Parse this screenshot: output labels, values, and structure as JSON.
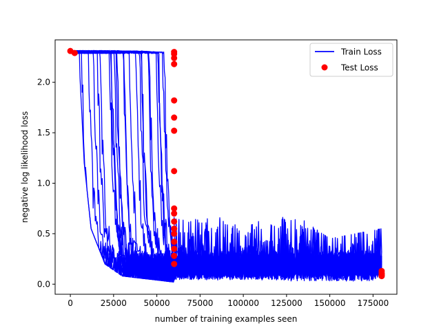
{
  "chart_data": {
    "type": "line",
    "xlabel": "number of training examples seen",
    "ylabel": "negative log likelihood loss",
    "xlim": [
      -8800,
      188800
    ],
    "ylim": [
      -0.1,
      2.42
    ],
    "xticks": [
      0,
      25000,
      50000,
      75000,
      100000,
      125000,
      150000,
      175000
    ],
    "xtick_labels": [
      "0",
      "25000",
      "50000",
      "75000",
      "100000",
      "125000",
      "150000",
      "175000"
    ],
    "yticks": [
      0.0,
      0.5,
      1.0,
      1.5,
      2.0
    ],
    "ytick_labels": [
      "0.0",
      "0.5",
      "1.0",
      "1.5",
      "2.0"
    ],
    "grid": false,
    "legend": {
      "placement": "top-right",
      "entries": [
        {
          "label": "Train Loss",
          "kind": "line",
          "color": "#0000ff"
        },
        {
          "label": "Test Loss",
          "kind": "marker",
          "color": "#ff0000"
        }
      ]
    },
    "series": [
      {
        "kind": "line",
        "color": "#0000ff",
        "x": [
          0,
          5000,
          8000,
          12000,
          20000,
          30000,
          40000,
          50000,
          60000,
          75000,
          100000,
          125000,
          150000,
          180000
        ],
        "y_min": [
          2.28,
          2.26,
          1.2,
          0.55,
          0.2,
          0.08,
          0.06,
          0.04,
          0.02,
          0.02,
          0.02,
          0.02,
          0.02,
          0.02
        ],
        "y_max": [
          2.32,
          2.32,
          2.32,
          2.32,
          2.32,
          2.31,
          2.31,
          2.3,
          2.3,
          0.75,
          0.55,
          0.75,
          0.45,
          0.55
        ]
      },
      {
        "kind": "scatter",
        "color": "#ff0000",
        "points": [
          [
            0,
            2.31
          ],
          [
            2500,
            2.29
          ],
          [
            60000,
            2.3
          ],
          [
            60000,
            2.28
          ],
          [
            60000,
            2.24
          ],
          [
            60000,
            2.18
          ],
          [
            60000,
            1.82
          ],
          [
            60000,
            1.65
          ],
          [
            60000,
            1.52
          ],
          [
            60000,
            1.12
          ],
          [
            60000,
            0.75
          ],
          [
            60000,
            0.7
          ],
          [
            60000,
            0.62
          ],
          [
            60000,
            0.55
          ],
          [
            60000,
            0.5
          ],
          [
            60000,
            0.42
          ],
          [
            60000,
            0.35
          ],
          [
            60000,
            0.28
          ],
          [
            60000,
            0.2
          ],
          [
            180000,
            0.13
          ],
          [
            180000,
            0.11
          ],
          [
            180000,
            0.1
          ],
          [
            180000,
            0.09
          ],
          [
            180000,
            0.08
          ]
        ]
      }
    ]
  }
}
